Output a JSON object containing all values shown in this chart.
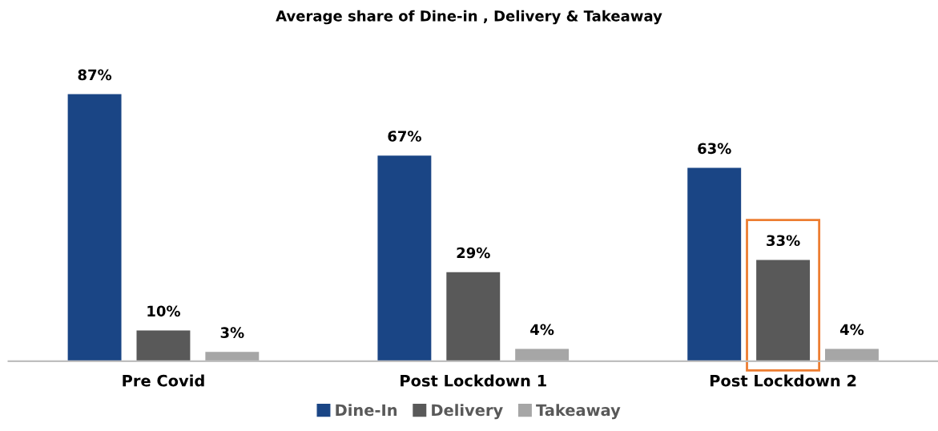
{
  "chart_data": {
    "type": "bar",
    "title": "Average share of Dine-in , Delivery & Takeaway",
    "categories": [
      "Pre Covid",
      "Post Lockdown 1",
      "Post Lockdown 2"
    ],
    "series": [
      {
        "name": "Dine-In",
        "color": "#1a4585",
        "values": [
          87,
          67,
          63
        ],
        "value_labels": [
          "87%",
          "67%",
          "63%"
        ]
      },
      {
        "name": "Delivery",
        "color": "#595959",
        "values": [
          10,
          29,
          33
        ],
        "value_labels": [
          "10%",
          "29%",
          "33%"
        ]
      },
      {
        "name": "Takeaway",
        "color": "#a6a6a6",
        "values": [
          3,
          4,
          4
        ],
        "value_labels": [
          "3%",
          "4%",
          "4%"
        ]
      }
    ],
    "tick_labels": "x",
    "grid": false,
    "legend": "bottom"
  }
}
